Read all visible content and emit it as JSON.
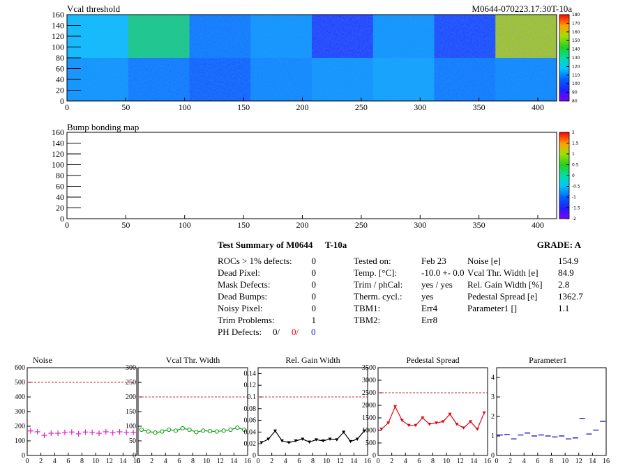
{
  "top_map": {
    "title": "Vcal threshold",
    "module_label": "M0644-070223.17:30T-10a",
    "x_ticks": [
      "0",
      "50",
      "100",
      "150",
      "200",
      "250",
      "300",
      "350",
      "400"
    ],
    "y_ticks": [
      "0",
      "20",
      "40",
      "60",
      "80",
      "100",
      "120",
      "140",
      "160"
    ],
    "z_ticks": [
      "80",
      "90",
      "100",
      "110",
      "120",
      "130",
      "140",
      "150",
      "160",
      "170",
      "180"
    ],
    "roc_blocks_upper": [
      118,
      135,
      108,
      112,
      96,
      112,
      98,
      158
    ],
    "roc_blocks_lower": [
      112,
      108,
      104,
      110,
      112,
      114,
      108,
      110
    ]
  },
  "bump_map": {
    "title": "Bump bonding map",
    "x_ticks": [
      "0",
      "50",
      "100",
      "150",
      "200",
      "250",
      "300",
      "350",
      "400"
    ],
    "y_ticks": [
      "0",
      "20",
      "40",
      "60",
      "80",
      "100",
      "120",
      "140",
      "160"
    ],
    "z_ticks": [
      "-2",
      "-1.5",
      "-1",
      "-0.5",
      "0",
      "0.5",
      "1",
      "1.5",
      "2"
    ]
  },
  "summary": {
    "title": "Test Summary of M0644",
    "temp_label": "T-10a",
    "grade_label": "GRADE:  A",
    "defects": [
      {
        "label": "ROCs > 1% defects:",
        "value": "0"
      },
      {
        "label": "Dead Pixel:",
        "value": "0"
      },
      {
        "label": "Mask Defects:",
        "value": "0"
      },
      {
        "label": "Dead Bumps:",
        "value": "0"
      },
      {
        "label": "Noisy Pixel:",
        "value": "0"
      },
      {
        "label": "Trim Problems:",
        "value": "1"
      }
    ],
    "ph_defects": {
      "label": "PH Defects:",
      "v1": "0/",
      "v2": "0/",
      "v3": "0"
    },
    "info": [
      {
        "label": "Tested on:",
        "value": "Feb 23"
      },
      {
        "label": "Temp. [°C]:",
        "value": "-10.0 +- 0.0"
      },
      {
        "label": "Trim / phCal:",
        "value": "yes / yes"
      },
      {
        "label": "Therm. cycl.:",
        "value": "yes"
      },
      {
        "label": "TBM1:",
        "value": "Err4"
      },
      {
        "label": "TBM2:",
        "value": "Err8"
      }
    ],
    "results": [
      {
        "label": "Noise [e]",
        "value": "154.9"
      },
      {
        "label": "Vcal Thr. Width [e]",
        "value": "84.9"
      },
      {
        "label": "Rel. Gain Width [%]",
        "value": "2.8"
      },
      {
        "label": "Pedestal Spread [e]",
        "value": "1362.7"
      },
      {
        "label": "Parameter1 []",
        "value": "1.1"
      }
    ]
  },
  "chart_data": [
    {
      "type": "scatter",
      "title": "Noise",
      "x": [
        0,
        1,
        2,
        3,
        4,
        5,
        6,
        7,
        8,
        9,
        10,
        11,
        12,
        13,
        14,
        15
      ],
      "values": [
        168,
        162,
        138,
        152,
        152,
        158,
        160,
        148,
        160,
        158,
        152,
        162,
        155,
        162,
        158,
        158
      ],
      "ylim": [
        0,
        600
      ],
      "threshold": 500,
      "y_ticks": [
        "0",
        "100",
        "200",
        "300",
        "400",
        "500",
        "600"
      ],
      "x_ticks": [
        "0",
        "2",
        "4",
        "6",
        "8",
        "10",
        "12",
        "14",
        "16"
      ],
      "color": "#e020c8",
      "marker": "cross"
    },
    {
      "type": "line",
      "title": "Vcal Thr. Width",
      "x": [
        0,
        1,
        2,
        3,
        4,
        5,
        6,
        7,
        8,
        9,
        10,
        11,
        12,
        13,
        14,
        15
      ],
      "values": [
        88,
        82,
        78,
        82,
        88,
        85,
        93,
        88,
        80,
        85,
        83,
        82,
        85,
        88,
        95,
        88
      ],
      "ylim": [
        0,
        300
      ],
      "threshold": 200,
      "y_ticks": [
        "0",
        "50",
        "100",
        "150",
        "200",
        "250",
        "300"
      ],
      "x_ticks": [
        "0",
        "2",
        "4",
        "6",
        "8",
        "10",
        "12",
        "14",
        "16"
      ],
      "color": "#0a9a0a",
      "marker": "circle"
    },
    {
      "type": "line",
      "title": "Rel. Gain Width",
      "x": [
        0,
        1,
        2,
        3,
        4,
        5,
        6,
        7,
        8,
        9,
        10,
        11,
        12,
        13,
        14,
        15
      ],
      "values": [
        0.022,
        0.028,
        0.042,
        0.025,
        0.022,
        0.025,
        0.028,
        0.023,
        0.027,
        0.025,
        0.028,
        0.027,
        0.04,
        0.024,
        0.028,
        0.042
      ],
      "ylim": [
        0,
        0.15
      ],
      "threshold": 0.1,
      "y_ticks": [
        "0",
        "0.02",
        "0.04",
        "0.06",
        "0.08",
        "0.1",
        "0.12",
        "0.14"
      ],
      "x_ticks": [
        "0",
        "2",
        "4",
        "6",
        "8",
        "10",
        "12",
        "14",
        "16"
      ],
      "color": "#000000",
      "marker": "triangle"
    },
    {
      "type": "line",
      "title": "Pedestal Spread",
      "x": [
        0,
        1,
        2,
        3,
        4,
        5,
        6,
        7,
        8,
        9,
        10,
        11,
        12,
        13,
        14,
        15
      ],
      "values": [
        1050,
        1300,
        1950,
        1400,
        1200,
        1200,
        1500,
        1250,
        1300,
        1350,
        1650,
        1250,
        1100,
        1350,
        1050,
        1700
      ],
      "ylim": [
        0,
        3500
      ],
      "threshold": 2500,
      "y_ticks": [
        "0",
        "500",
        "1000",
        "1500",
        "2000",
        "2500",
        "3000",
        "3500"
      ],
      "x_ticks": [
        "0",
        "2",
        "4",
        "6",
        "8",
        "10",
        "12",
        "14",
        "16"
      ],
      "color": "#e8000b",
      "marker": "triangle"
    },
    {
      "type": "scatter",
      "title": "Parameter1",
      "x": [
        0,
        1,
        2,
        3,
        4,
        5,
        6,
        7,
        8,
        9,
        10,
        11,
        12,
        13,
        14,
        15
      ],
      "values": [
        1.05,
        1.08,
        0.85,
        1.05,
        1.15,
        1.0,
        1.05,
        1.0,
        0.95,
        1.0,
        0.85,
        0.9,
        1.9,
        1.1,
        1.3,
        1.75
      ],
      "ylim": [
        0,
        4.5
      ],
      "threshold": null,
      "y_ticks": [
        "0",
        "1",
        "2",
        "3",
        "4"
      ],
      "x_ticks": [
        "0",
        "2",
        "4",
        "6",
        "8",
        "10",
        "12",
        "14",
        "16"
      ],
      "color": "#1f1fd0",
      "marker": "hbar"
    }
  ],
  "colors": {
    "threshold": "#c0303a"
  }
}
